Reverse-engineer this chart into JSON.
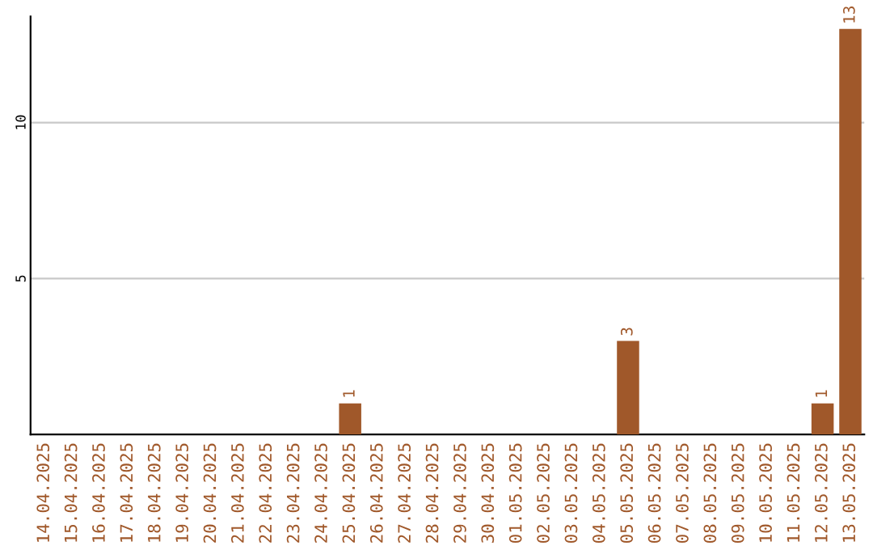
{
  "chart_data": {
    "type": "bar",
    "categories": [
      "14.04.2025",
      "15.04.2025",
      "16.04.2025",
      "17.04.2025",
      "18.04.2025",
      "19.04.2025",
      "20.04.2025",
      "21.04.2025",
      "22.04.2025",
      "23.04.2025",
      "24.04.2025",
      "25.04.2025",
      "26.04.2025",
      "27.04.2025",
      "28.04.2025",
      "29.04.2025",
      "30.04.2025",
      "01.05.2025",
      "02.05.2025",
      "03.05.2025",
      "04.05.2025",
      "05.05.2025",
      "06.05.2025",
      "07.05.2025",
      "08.05.2025",
      "09.05.2025",
      "10.05.2025",
      "11.05.2025",
      "12.05.2025",
      "13.05.2025"
    ],
    "values": [
      0,
      0,
      0,
      0,
      0,
      0,
      0,
      0,
      0,
      0,
      0,
      1,
      0,
      0,
      0,
      0,
      0,
      0,
      0,
      0,
      0,
      3,
      0,
      0,
      0,
      0,
      0,
      0,
      1,
      13
    ],
    "value_labels": [
      null,
      null,
      null,
      null,
      null,
      null,
      null,
      null,
      null,
      null,
      null,
      "1",
      null,
      null,
      null,
      null,
      null,
      null,
      null,
      null,
      null,
      "3",
      null,
      null,
      null,
      null,
      null,
      null,
      "1",
      "13"
    ],
    "color": "#a0582a",
    "ylim": [
      0,
      13.4
    ],
    "yticks": [
      5,
      10
    ],
    "grid": "y"
  }
}
